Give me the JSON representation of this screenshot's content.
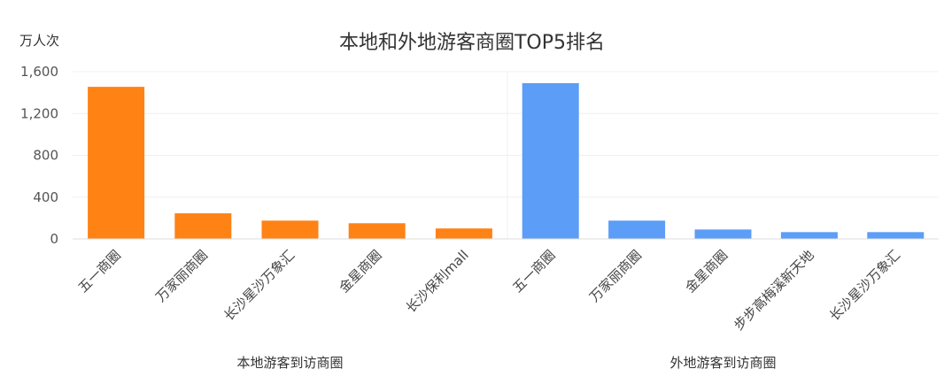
{
  "chart_data": {
    "type": "bar",
    "title": "本地和外地游客商圈TOP5排名",
    "ylabel": "万人次",
    "ylim": [
      0,
      1600
    ],
    "yticks": [
      0,
      400,
      800,
      1200,
      1600
    ],
    "ytick_labels": [
      "0",
      "400",
      "800",
      "1,200",
      "1,600"
    ],
    "grid": true,
    "colors": {
      "local": "#FF8215",
      "nonlocal": "#5C9DF7"
    },
    "groups": [
      {
        "name": "本地游客到访商圈",
        "color_key": "local",
        "categories": [
          "五一商圈",
          "万家丽商圈",
          "长沙星沙万象汇",
          "金星商圈",
          "长沙保利mall"
        ],
        "values": [
          1455,
          245,
          175,
          150,
          100
        ]
      },
      {
        "name": "外地游客到访商圈",
        "color_key": "nonlocal",
        "categories": [
          "五一商圈",
          "万家丽商圈",
          "金星商圈",
          "步步高梅溪新天地",
          "长沙星沙万象汇"
        ],
        "values": [
          1490,
          175,
          90,
          65,
          65
        ]
      }
    ]
  }
}
